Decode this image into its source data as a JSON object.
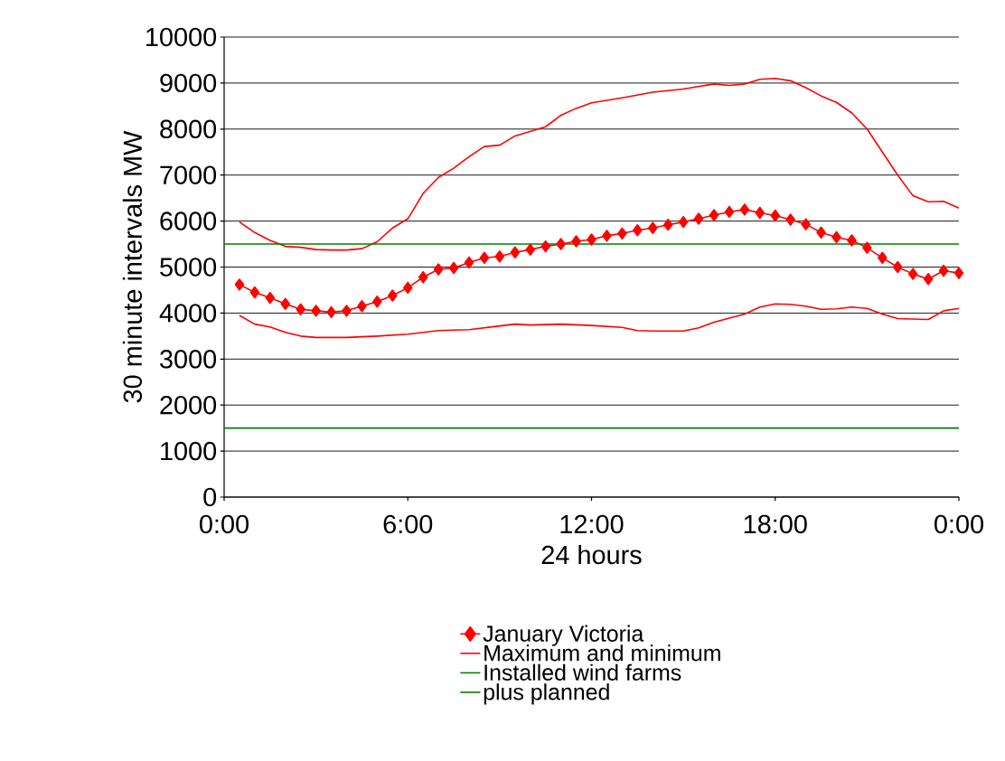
{
  "chart_data": {
    "type": "line",
    "xlabel": "24 hours",
    "ylabel": "30 minute intervals MW",
    "xlim": [
      0,
      24
    ],
    "ylim": [
      0,
      10000
    ],
    "xticks": [
      {
        "value": 0,
        "label": "0:00"
      },
      {
        "value": 6,
        "label": "6:00"
      },
      {
        "value": 12,
        "label": "12:00"
      },
      {
        "value": 18,
        "label": "18:00"
      },
      {
        "value": 24,
        "label": "0:00"
      }
    ],
    "yticks": [
      0,
      1000,
      2000,
      3000,
      4000,
      5000,
      6000,
      7000,
      8000,
      9000,
      10000
    ],
    "grid": "y",
    "legend": "bottom",
    "series": [
      {
        "name": "January Victoria",
        "color": "#ff0000",
        "marker": "diamond",
        "x": [
          0.5,
          1,
          1.5,
          2,
          2.5,
          3,
          3.5,
          4,
          4.5,
          5,
          5.5,
          6,
          6.5,
          7,
          7.5,
          8,
          8.5,
          9,
          9.5,
          10,
          10.5,
          11,
          11.5,
          12,
          12.5,
          13,
          13.5,
          14,
          14.5,
          15,
          15.5,
          16,
          16.5,
          17,
          17.5,
          18,
          18.5,
          19,
          19.5,
          20,
          20.5,
          21,
          21.5,
          22,
          22.5,
          23,
          23.5,
          24
        ],
        "values": [
          4620,
          4450,
          4330,
          4200,
          4080,
          4050,
          4020,
          4050,
          4150,
          4250,
          4380,
          4550,
          4780,
          4950,
          4980,
          5100,
          5200,
          5230,
          5320,
          5380,
          5450,
          5500,
          5560,
          5600,
          5680,
          5730,
          5800,
          5850,
          5920,
          5980,
          6050,
          6130,
          6200,
          6250,
          6180,
          6120,
          6030,
          5930,
          5750,
          5650,
          5580,
          5420,
          5200,
          5000,
          4850,
          4740,
          4920,
          4870
        ]
      },
      {
        "name": "Maximum and minimum",
        "color": "#ff0000",
        "marker": "none",
        "x": [
          0.5,
          1,
          1.5,
          2,
          2.5,
          3,
          3.5,
          4,
          4.5,
          5,
          5.5,
          6,
          6.5,
          7,
          7.5,
          8,
          8.5,
          9,
          9.5,
          10,
          10.5,
          11,
          11.5,
          12,
          13,
          14,
          15,
          16,
          16.5,
          17,
          17.5,
          18,
          18.5,
          19,
          19.5,
          20,
          20.5,
          21,
          21.5,
          22,
          22.5,
          23,
          23.5,
          24
        ],
        "values": [
          5980,
          5750,
          5580,
          5450,
          5430,
          5380,
          5370,
          5370,
          5400,
          5550,
          5850,
          6050,
          6600,
          6950,
          7150,
          7400,
          7620,
          7650,
          7850,
          7950,
          8050,
          8300,
          8450,
          8570,
          8680,
          8800,
          8870,
          8980,
          8950,
          8980,
          9080,
          9100,
          9050,
          8900,
          8720,
          8580,
          8350,
          8000,
          7500,
          7000,
          6550,
          6420,
          6430,
          6280
        ]
      },
      {
        "color": "#ff0000",
        "marker": "none",
        "x": [
          0.5,
          1,
          1.5,
          2,
          2.5,
          3,
          4,
          5,
          6,
          7,
          8,
          9,
          9.5,
          10,
          11,
          12,
          13,
          13.5,
          14,
          15,
          15.5,
          16,
          17,
          17.5,
          18,
          18.5,
          19,
          19.5,
          20,
          20.5,
          21,
          21.5,
          22,
          23,
          23.5,
          24
        ],
        "values": [
          3950,
          3760,
          3700,
          3580,
          3500,
          3470,
          3470,
          3500,
          3540,
          3620,
          3640,
          3720,
          3760,
          3740,
          3760,
          3730,
          3690,
          3620,
          3610,
          3610,
          3680,
          3800,
          3980,
          4130,
          4200,
          4190,
          4150,
          4080,
          4090,
          4130,
          4100,
          3980,
          3880,
          3860,
          4050,
          4100
        ]
      },
      {
        "name": "Installed wind farms",
        "color": "#008000",
        "marker": "none",
        "x": [
          0,
          24
        ],
        "values": [
          1500,
          1500
        ]
      },
      {
        "name": "plus planned",
        "color": "#008000",
        "marker": "none",
        "x": [
          0,
          24
        ],
        "values": [
          5500,
          5500
        ]
      }
    ]
  }
}
